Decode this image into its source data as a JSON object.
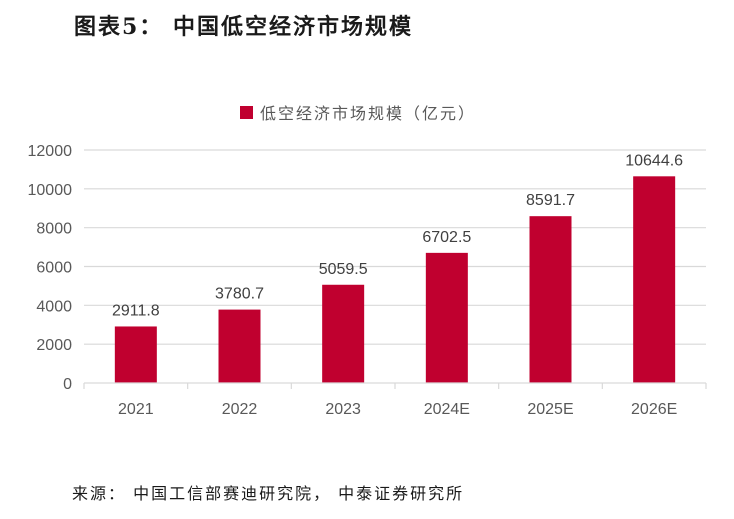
{
  "title": "图表5：  中国低空经济市场规模",
  "source": "来源：  中国工信部赛迪研究院，  中泰证券研究所",
  "chart_data": {
    "type": "bar",
    "title": "中国低空经济市场规模",
    "xlabel": "",
    "ylabel": "",
    "categories": [
      "2021",
      "2022",
      "2023",
      "2024E",
      "2025E",
      "2026E"
    ],
    "series": [
      {
        "name": "低空经济市场规模（亿元）",
        "color": "#c0002f",
        "values": [
          2911.8,
          3780.7,
          5059.5,
          6702.5,
          8591.7,
          10644.6
        ],
        "labels": [
          "2911.8",
          "3780.7",
          "5059.5",
          "6702.5",
          "8591.7",
          "10644.6"
        ]
      }
    ],
    "ylim": [
      0,
      12000
    ],
    "yticks": [
      0,
      2000,
      4000,
      6000,
      8000,
      10000,
      12000
    ],
    "ytick_labels": [
      "0",
      "2000",
      "4000",
      "6000",
      "8000",
      "10000",
      "12000"
    ],
    "grid": true,
    "legend": "top-center",
    "gridline_color": "#d9d9d9",
    "text_color": "#595959"
  }
}
